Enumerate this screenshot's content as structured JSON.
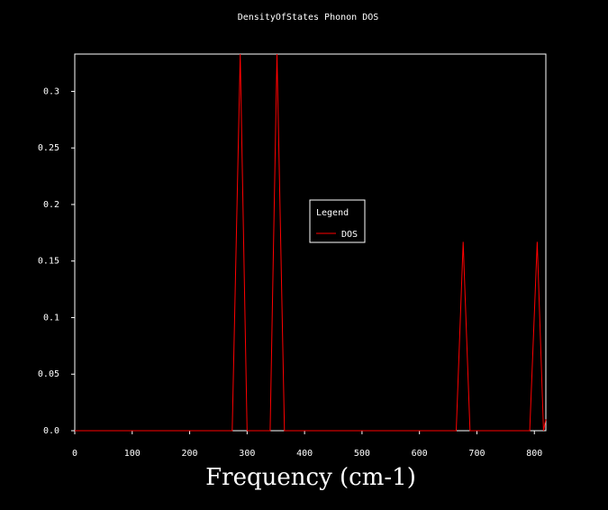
{
  "chart_data": {
    "type": "line",
    "title": "DensityOfStates Phonon DOS",
    "xlabel": "Frequency (cm-1)",
    "ylabel": "",
    "xlim": [
      0,
      820
    ],
    "ylim": [
      0,
      0.333
    ],
    "xticks": [
      0,
      100,
      200,
      300,
      400,
      500,
      600,
      700,
      800
    ],
    "xtick_labels": [
      "0",
      "100",
      "200",
      "300",
      "400",
      "500",
      "600",
      "700",
      "800"
    ],
    "yticks": [
      0.0,
      0.05,
      0.1,
      0.15,
      0.2,
      0.25,
      0.3
    ],
    "ytick_labels": [
      "0.0",
      "0.05",
      "0.1",
      "0.15",
      "0.2",
      "0.25",
      "0.3"
    ],
    "grid": false,
    "legend": {
      "title": "Legend",
      "placement": "center"
    },
    "series": [
      {
        "name": "DOS",
        "color": "#ff0000",
        "x": [
          0,
          274,
          288,
          300,
          340,
          352,
          365,
          664,
          676,
          688,
          792,
          805,
          816,
          820
        ],
        "y": [
          0,
          0,
          0.333,
          0,
          0,
          0.333,
          0,
          0,
          0.167,
          0,
          0,
          0.167,
          0,
          0.01
        ]
      }
    ]
  }
}
